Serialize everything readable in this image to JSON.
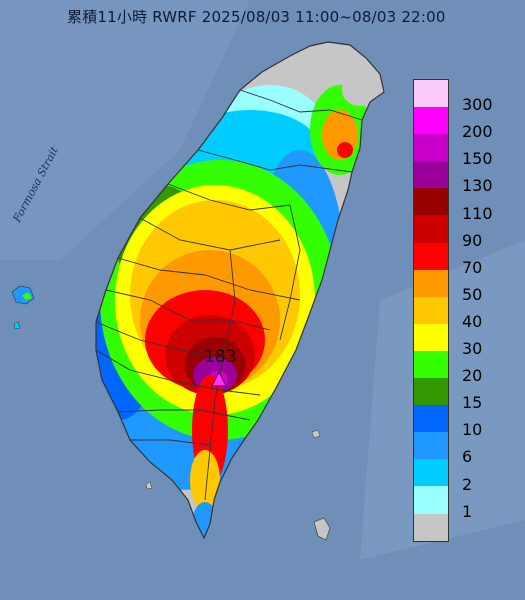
{
  "title": "累積11小時 RWRF 2025/08/03 11:00~08/03 22:00",
  "map_label": "Formosa Strait",
  "max_marker": {
    "value": "183",
    "icon": "triangle-marker"
  },
  "legend": {
    "labels": [
      "300",
      "200",
      "150",
      "130",
      "110",
      "90",
      "70",
      "50",
      "40",
      "30",
      "20",
      "15",
      "10",
      "6",
      "2",
      "1"
    ],
    "colors": [
      "#fcc8f8",
      "#ff00ff",
      "#cc00cc",
      "#9a009a",
      "#990000",
      "#cc0000",
      "#ff0000",
      "#ff9900",
      "#ffc800",
      "#ffff00",
      "#33ff00",
      "#339900",
      "#0066ff",
      "#1f99ff",
      "#00ccff",
      "#99ffff",
      "#c6c6c6"
    ]
  },
  "colors": {
    "sea": "#6f8eb8",
    "land_no_rain": "#c6c6c6",
    "border": "#333333"
  }
}
